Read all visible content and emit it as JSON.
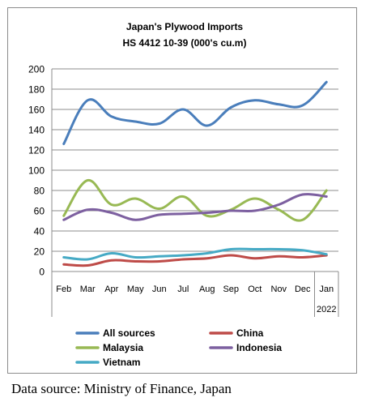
{
  "chart_data": {
    "type": "line",
    "title": "Japan's Plywood Imports",
    "subtitle": "HS 4412 10-39 (000's cu.m)",
    "categories": [
      "Feb",
      "Mar",
      "Apr",
      "May",
      "Jun",
      "Jul",
      "Aug",
      "Sep",
      "Oct",
      "Nov",
      "Dec",
      "Jan"
    ],
    "year_label": "2022",
    "ylim": [
      0,
      200
    ],
    "yticks": [
      0,
      20,
      40,
      60,
      80,
      100,
      120,
      140,
      160,
      180,
      200
    ],
    "grid": true,
    "legend_position": "bottom",
    "series": [
      {
        "name": "All sources",
        "color": "#4a7ebb",
        "values": [
          126,
          169,
          153,
          148,
          146,
          160,
          144,
          162,
          169,
          165,
          164,
          187
        ]
      },
      {
        "name": "China",
        "color": "#be4b48",
        "values": [
          7,
          6,
          11,
          10,
          10,
          12,
          13,
          16,
          13,
          15,
          14,
          16
        ]
      },
      {
        "name": "Malaysia",
        "color": "#98b954",
        "values": [
          55,
          90,
          66,
          72,
          62,
          74,
          55,
          61,
          72,
          61,
          51,
          80
        ]
      },
      {
        "name": "Indonesia",
        "color": "#7d60a0",
        "values": [
          51,
          61,
          58,
          51,
          56,
          57,
          58,
          60,
          60,
          66,
          76,
          74
        ]
      },
      {
        "name": "Vietnam",
        "color": "#46aac5",
        "values": [
          14,
          12,
          18,
          14,
          15,
          16,
          18,
          22,
          22,
          22,
          21,
          17
        ]
      }
    ]
  },
  "source_note": "Data source: Ministry of Finance, Japan"
}
